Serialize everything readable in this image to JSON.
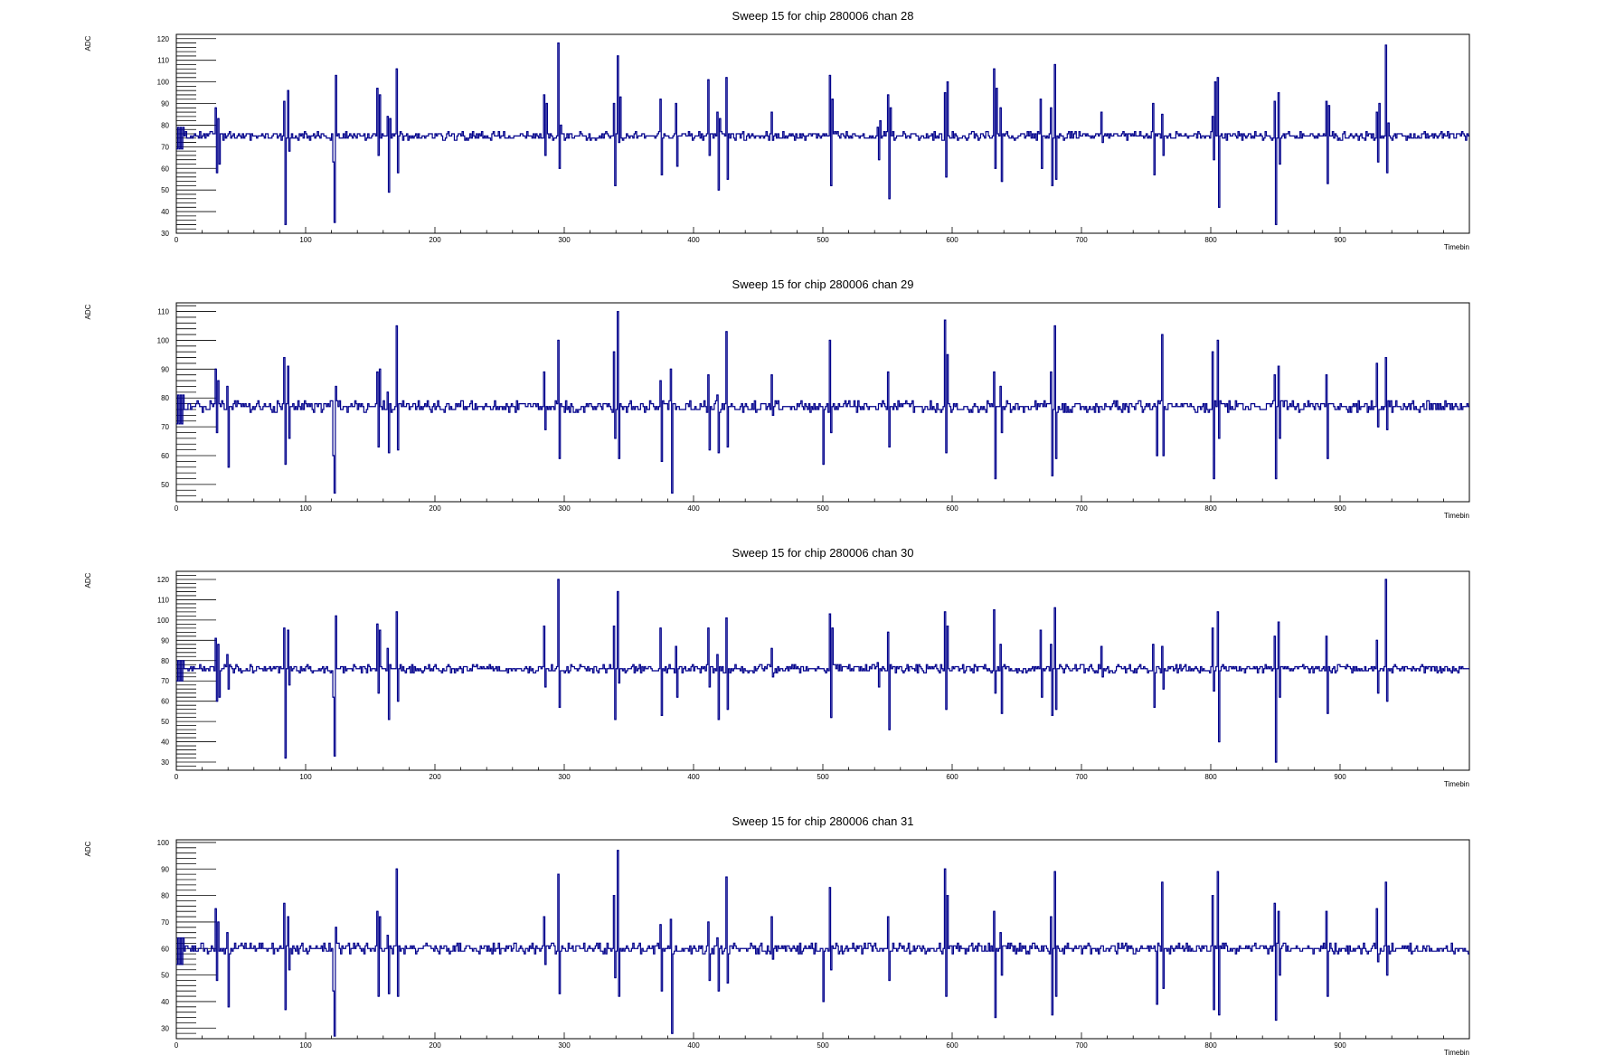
{
  "chart_data": [
    {
      "type": "line",
      "title": "Sweep 15 for chip 280006 chan 28",
      "xlabel": "Timebin",
      "ylabel": "ADC",
      "xlim": [
        0,
        1000
      ],
      "ylim": [
        30,
        122
      ],
      "xticks": [
        0,
        100,
        200,
        300,
        400,
        500,
        600,
        700,
        800,
        900
      ],
      "yticks": [
        30,
        40,
        50,
        60,
        70,
        80,
        90,
        100,
        110,
        120
      ],
      "baseline": 75,
      "line_color": "#00008b",
      "spikes": [
        {
          "x": 30,
          "values": [
            88,
            58,
            83,
            62
          ]
        },
        {
          "x": 83,
          "values": [
            91,
            34
          ]
        },
        {
          "x": 86,
          "values": [
            96,
            68
          ]
        },
        {
          "x": 121,
          "values": [
            63,
            35,
            103
          ]
        },
        {
          "x": 155,
          "values": [
            97,
            66,
            94
          ]
        },
        {
          "x": 163,
          "values": [
            84,
            49,
            83
          ]
        },
        {
          "x": 170,
          "values": [
            106,
            58
          ]
        },
        {
          "x": 284,
          "values": [
            94,
            66,
            90
          ]
        },
        {
          "x": 295,
          "values": [
            118,
            60,
            80
          ]
        },
        {
          "x": 338,
          "values": [
            90,
            52
          ]
        },
        {
          "x": 341,
          "values": [
            112,
            72,
            93
          ]
        },
        {
          "x": 374,
          "values": [
            92,
            57
          ]
        },
        {
          "x": 386,
          "values": [
            90,
            61
          ]
        },
        {
          "x": 411,
          "values": [
            101,
            66
          ]
        },
        {
          "x": 418,
          "values": [
            86,
            50,
            83
          ]
        },
        {
          "x": 425,
          "values": [
            102,
            55
          ]
        },
        {
          "x": 460,
          "values": [
            86,
            73
          ]
        },
        {
          "x": 505,
          "values": [
            103,
            52,
            92
          ]
        },
        {
          "x": 542,
          "values": [
            79,
            64,
            82
          ]
        },
        {
          "x": 550,
          "values": [
            94,
            46,
            88
          ]
        },
        {
          "x": 594,
          "values": [
            95,
            56,
            100
          ]
        },
        {
          "x": 632,
          "values": [
            106,
            60,
            97
          ]
        },
        {
          "x": 637,
          "values": [
            88,
            54
          ]
        },
        {
          "x": 668,
          "values": [
            92,
            60
          ]
        },
        {
          "x": 676,
          "values": [
            88,
            52
          ]
        },
        {
          "x": 679,
          "values": [
            108,
            55
          ]
        },
        {
          "x": 715,
          "values": [
            86,
            72
          ]
        },
        {
          "x": 755,
          "values": [
            90,
            57
          ]
        },
        {
          "x": 762,
          "values": [
            85,
            66
          ]
        },
        {
          "x": 801,
          "values": [
            84,
            64,
            100
          ]
        },
        {
          "x": 805,
          "values": [
            102,
            42
          ]
        },
        {
          "x": 849,
          "values": [
            91,
            34
          ]
        },
        {
          "x": 852,
          "values": [
            95,
            62
          ]
        },
        {
          "x": 889,
          "values": [
            91,
            53,
            89
          ]
        },
        {
          "x": 928,
          "values": [
            86,
            63,
            90
          ]
        },
        {
          "x": 935,
          "values": [
            117,
            58,
            81
          ]
        }
      ]
    },
    {
      "type": "line",
      "title": "Sweep 15 for chip 280006 chan 29",
      "xlabel": "Timebin",
      "ylabel": "ADC",
      "xlim": [
        0,
        1000
      ],
      "ylim": [
        44,
        113
      ],
      "xticks": [
        0,
        100,
        200,
        300,
        400,
        500,
        600,
        700,
        800,
        900
      ],
      "yticks": [
        50,
        60,
        70,
        80,
        90,
        100,
        110
      ],
      "baseline": 77,
      "line_color": "#00008b",
      "spikes": [
        {
          "x": 30,
          "values": [
            90,
            68,
            86
          ]
        },
        {
          "x": 39,
          "values": [
            84,
            56
          ]
        },
        {
          "x": 83,
          "values": [
            94,
            57
          ]
        },
        {
          "x": 86,
          "values": [
            91,
            66
          ]
        },
        {
          "x": 121,
          "values": [
            60,
            47,
            84
          ]
        },
        {
          "x": 155,
          "values": [
            89,
            63,
            90
          ]
        },
        {
          "x": 163,
          "values": [
            82,
            61
          ]
        },
        {
          "x": 170,
          "values": [
            105,
            62
          ]
        },
        {
          "x": 284,
          "values": [
            89,
            69
          ]
        },
        {
          "x": 295,
          "values": [
            100,
            59
          ]
        },
        {
          "x": 338,
          "values": [
            96,
            66
          ]
        },
        {
          "x": 341,
          "values": [
            110,
            59
          ]
        },
        {
          "x": 374,
          "values": [
            86,
            58
          ]
        },
        {
          "x": 382,
          "values": [
            90,
            47
          ]
        },
        {
          "x": 411,
          "values": [
            88,
            62
          ]
        },
        {
          "x": 418,
          "values": [
            81,
            61
          ]
        },
        {
          "x": 425,
          "values": [
            103,
            63
          ]
        },
        {
          "x": 460,
          "values": [
            88,
            74
          ]
        },
        {
          "x": 500,
          "values": [
            57,
            76
          ]
        },
        {
          "x": 505,
          "values": [
            100,
            68
          ]
        },
        {
          "x": 550,
          "values": [
            89,
            63
          ]
        },
        {
          "x": 594,
          "values": [
            107,
            61,
            95
          ]
        },
        {
          "x": 632,
          "values": [
            89,
            52
          ]
        },
        {
          "x": 637,
          "values": [
            84,
            68
          ]
        },
        {
          "x": 676,
          "values": [
            89,
            53
          ]
        },
        {
          "x": 679,
          "values": [
            105,
            59
          ]
        },
        {
          "x": 758,
          "values": [
            60,
            79
          ]
        },
        {
          "x": 762,
          "values": [
            102,
            60
          ]
        },
        {
          "x": 801,
          "values": [
            96,
            52
          ]
        },
        {
          "x": 805,
          "values": [
            100,
            66
          ]
        },
        {
          "x": 849,
          "values": [
            88,
            52
          ]
        },
        {
          "x": 852,
          "values": [
            91,
            66
          ]
        },
        {
          "x": 889,
          "values": [
            88,
            59
          ]
        },
        {
          "x": 928,
          "values": [
            92,
            70
          ]
        },
        {
          "x": 935,
          "values": [
            94,
            69
          ]
        }
      ]
    },
    {
      "type": "line",
      "title": "Sweep 15 for chip 280006 chan 30",
      "xlabel": "Timebin",
      "ylabel": "ADC",
      "xlim": [
        0,
        1000
      ],
      "ylim": [
        26,
        124
      ],
      "xticks": [
        0,
        100,
        200,
        300,
        400,
        500,
        600,
        700,
        800,
        900
      ],
      "yticks": [
        30,
        40,
        50,
        60,
        70,
        80,
        90,
        100,
        110,
        120
      ],
      "baseline": 76,
      "line_color": "#00008b",
      "spikes": [
        {
          "x": 30,
          "values": [
            91,
            60,
            88,
            62
          ]
        },
        {
          "x": 39,
          "values": [
            83,
            66
          ]
        },
        {
          "x": 83,
          "values": [
            96,
            32
          ]
        },
        {
          "x": 86,
          "values": [
            95,
            68
          ]
        },
        {
          "x": 121,
          "values": [
            62,
            33,
            102
          ]
        },
        {
          "x": 155,
          "values": [
            98,
            64,
            95
          ]
        },
        {
          "x": 163,
          "values": [
            86,
            51
          ]
        },
        {
          "x": 170,
          "values": [
            104,
            60
          ]
        },
        {
          "x": 284,
          "values": [
            97,
            67
          ]
        },
        {
          "x": 295,
          "values": [
            120,
            57
          ]
        },
        {
          "x": 338,
          "values": [
            97,
            51
          ]
        },
        {
          "x": 341,
          "values": [
            114,
            69
          ]
        },
        {
          "x": 374,
          "values": [
            96,
            53
          ]
        },
        {
          "x": 386,
          "values": [
            87,
            62
          ]
        },
        {
          "x": 411,
          "values": [
            96,
            67
          ]
        },
        {
          "x": 418,
          "values": [
            83,
            51
          ]
        },
        {
          "x": 425,
          "values": [
            101,
            56
          ]
        },
        {
          "x": 460,
          "values": [
            86,
            72
          ]
        },
        {
          "x": 505,
          "values": [
            103,
            52,
            96
          ]
        },
        {
          "x": 542,
          "values": [
            79,
            67
          ]
        },
        {
          "x": 550,
          "values": [
            94,
            46
          ]
        },
        {
          "x": 594,
          "values": [
            104,
            56,
            97
          ]
        },
        {
          "x": 632,
          "values": [
            105,
            64
          ]
        },
        {
          "x": 637,
          "values": [
            88,
            54
          ]
        },
        {
          "x": 668,
          "values": [
            95,
            62
          ]
        },
        {
          "x": 676,
          "values": [
            88,
            53
          ]
        },
        {
          "x": 679,
          "values": [
            106,
            56
          ]
        },
        {
          "x": 715,
          "values": [
            87,
            72
          ]
        },
        {
          "x": 755,
          "values": [
            88,
            57
          ]
        },
        {
          "x": 762,
          "values": [
            87,
            66
          ]
        },
        {
          "x": 801,
          "values": [
            96,
            65
          ]
        },
        {
          "x": 805,
          "values": [
            104,
            40
          ]
        },
        {
          "x": 849,
          "values": [
            92,
            30
          ]
        },
        {
          "x": 852,
          "values": [
            99,
            62
          ]
        },
        {
          "x": 889,
          "values": [
            92,
            54
          ]
        },
        {
          "x": 928,
          "values": [
            90,
            64
          ]
        },
        {
          "x": 935,
          "values": [
            120,
            60
          ]
        }
      ]
    },
    {
      "type": "line",
      "title": "Sweep 15 for chip 280006 chan 31",
      "xlabel": "Timebin",
      "ylabel": "ADC",
      "xlim": [
        0,
        1000
      ],
      "ylim": [
        26,
        101
      ],
      "xticks": [
        0,
        100,
        200,
        300,
        400,
        500,
        600,
        700,
        800,
        900
      ],
      "yticks": [
        30,
        40,
        50,
        60,
        70,
        80,
        90,
        100
      ],
      "baseline": 60,
      "line_color": "#00008b",
      "spikes": [
        {
          "x": 30,
          "values": [
            75,
            48,
            70
          ]
        },
        {
          "x": 39,
          "values": [
            66,
            38
          ]
        },
        {
          "x": 83,
          "values": [
            77,
            37
          ]
        },
        {
          "x": 86,
          "values": [
            72,
            52
          ]
        },
        {
          "x": 121,
          "values": [
            44,
            27,
            68
          ]
        },
        {
          "x": 155,
          "values": [
            74,
            42,
            72
          ]
        },
        {
          "x": 163,
          "values": [
            65,
            43
          ]
        },
        {
          "x": 170,
          "values": [
            90,
            42
          ]
        },
        {
          "x": 284,
          "values": [
            72,
            54
          ]
        },
        {
          "x": 295,
          "values": [
            88,
            43
          ]
        },
        {
          "x": 338,
          "values": [
            80,
            49
          ]
        },
        {
          "x": 341,
          "values": [
            97,
            42
          ]
        },
        {
          "x": 374,
          "values": [
            69,
            44
          ]
        },
        {
          "x": 382,
          "values": [
            71,
            28
          ]
        },
        {
          "x": 411,
          "values": [
            70,
            48
          ]
        },
        {
          "x": 418,
          "values": [
            64,
            44
          ]
        },
        {
          "x": 425,
          "values": [
            87,
            47
          ]
        },
        {
          "x": 460,
          "values": [
            72,
            56
          ]
        },
        {
          "x": 500,
          "values": [
            40,
            59
          ]
        },
        {
          "x": 505,
          "values": [
            83,
            52
          ]
        },
        {
          "x": 550,
          "values": [
            72,
            48
          ]
        },
        {
          "x": 594,
          "values": [
            90,
            42,
            80
          ]
        },
        {
          "x": 632,
          "values": [
            74,
            34
          ]
        },
        {
          "x": 637,
          "values": [
            66,
            50
          ]
        },
        {
          "x": 676,
          "values": [
            72,
            35
          ]
        },
        {
          "x": 679,
          "values": [
            89,
            42
          ]
        },
        {
          "x": 758,
          "values": [
            39,
            62
          ]
        },
        {
          "x": 762,
          "values": [
            85,
            45
          ]
        },
        {
          "x": 801,
          "values": [
            80,
            37
          ]
        },
        {
          "x": 805,
          "values": [
            89,
            35
          ]
        },
        {
          "x": 849,
          "values": [
            77,
            33
          ]
        },
        {
          "x": 852,
          "values": [
            74,
            50
          ]
        },
        {
          "x": 889,
          "values": [
            74,
            42
          ]
        },
        {
          "x": 928,
          "values": [
            75,
            55
          ]
        },
        {
          "x": 935,
          "values": [
            85,
            50
          ]
        }
      ]
    }
  ]
}
